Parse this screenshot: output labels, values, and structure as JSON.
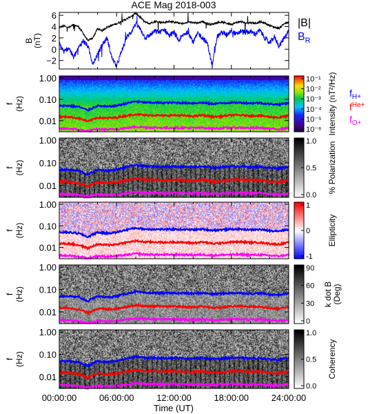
{
  "chart_data": [
    {
      "type": "line",
      "title": "ACE Mag 2018-003",
      "ylabel": "B",
      "yunit": "(nT)",
      "ylim": [
        -3.5,
        6.5
      ],
      "yticks": [
        -2,
        0,
        2,
        4,
        6
      ],
      "xlim": [
        0,
        24
      ],
      "series": [
        {
          "name": "|B|",
          "color": "#000000",
          "x": [
            0,
            0.5,
            1,
            1.5,
            2,
            2.5,
            3,
            3.5,
            4,
            4.5,
            5,
            5.5,
            6,
            6.5,
            7,
            7.5,
            8,
            8.5,
            9,
            9.5,
            10,
            10.5,
            11,
            11.5,
            12,
            12.5,
            13,
            13.5,
            14,
            14.5,
            15,
            15.5,
            16,
            16.5,
            17,
            17.5,
            18,
            18.5,
            19,
            19.5,
            20,
            20.5,
            21,
            21.5,
            22,
            22.5,
            23,
            23.5,
            24
          ],
          "values": [
            3.9,
            4.1,
            3.8,
            4.3,
            4.0,
            2.8,
            1.5,
            2.0,
            3.6,
            3.3,
            3.9,
            4.2,
            4.5,
            4.9,
            5.3,
            5.8,
            6.3,
            5.6,
            4.7,
            4.6,
            4.9,
            4.8,
            4.7,
            4.9,
            4.8,
            4.6,
            4.5,
            4.8,
            4.7,
            4.6,
            4.9,
            4.5,
            4.4,
            4.7,
            4.8,
            4.6,
            4.4,
            4.7,
            4.9,
            4.6,
            4.7,
            4.6,
            4.8,
            4.6,
            4.2,
            3.9,
            3.7,
            4.5,
            4.7
          ]
        },
        {
          "name": "B_R",
          "color": "#0000ff",
          "x": [
            0,
            0.5,
            1,
            1.5,
            2,
            2.5,
            3,
            3.5,
            4,
            4.5,
            5,
            5.5,
            6,
            6.5,
            7,
            7.5,
            8,
            8.5,
            9,
            9.5,
            10,
            10.5,
            11,
            11.5,
            12,
            12.5,
            13,
            13.5,
            14,
            14.5,
            15,
            15.5,
            16,
            16.5,
            17,
            17.5,
            18,
            18.5,
            19,
            19.5,
            20,
            20.5,
            21,
            21.5,
            22,
            22.5,
            23,
            23.5,
            24
          ],
          "values": [
            1.0,
            -0.5,
            0.3,
            -1.5,
            0.2,
            1.5,
            0.5,
            -2.5,
            -1.0,
            0.8,
            2.0,
            -1.5,
            -3.0,
            -0.5,
            2.0,
            3.0,
            4.5,
            3.5,
            2.0,
            2.5,
            3.2,
            3.0,
            3.5,
            2.4,
            3.0,
            1.5,
            2.6,
            3.1,
            1.2,
            2.8,
            2.0,
            1.0,
            -3.0,
            2.2,
            3.0,
            2.5,
            3.4,
            2.6,
            3.2,
            2.9,
            3.1,
            2.7,
            3.3,
            2.0,
            1.0,
            2.2,
            0.5,
            2.0,
            3.2
          ]
        }
      ],
      "legend": [
        {
          "label": "|B|",
          "color": "#000000"
        },
        {
          "label": "B",
          "sub": "R",
          "color": "#0000ff"
        }
      ]
    },
    {
      "type": "heatmap",
      "ylabel": "f",
      "yunit": "(Hz)",
      "yscale": "log",
      "ylim": [
        0.003,
        1.25
      ],
      "yticks": [
        0.01,
        0.1,
        1
      ],
      "ytick_labels": [
        "0.01",
        "0.10",
        "1.00"
      ],
      "colorbar": {
        "label": "Intensity (nT²/Hz)",
        "ticks": [
          "10⁻¹",
          "10⁻²",
          "10⁻³",
          "10⁻⁴",
          "10⁻⁵",
          "10⁻⁶"
        ],
        "range": [
          1e-06,
          0.1
        ]
      },
      "lines": [
        "f_H+",
        "f_He+",
        "f_O+"
      ]
    },
    {
      "type": "heatmap",
      "ylabel": "f",
      "yunit": "(Hz)",
      "yscale": "log",
      "ylim": [
        0.003,
        1.25
      ],
      "yticks": [
        0.01,
        0.1,
        1
      ],
      "ytick_labels": [
        "0.01",
        "0.10",
        "1.00"
      ],
      "colorbar": {
        "label": "% Polarization",
        "ticks": [
          "1.0",
          "0.5",
          "0.0"
        ],
        "range": [
          0,
          1
        ]
      },
      "lines": [
        "f_H+",
        "f_He+",
        "f_O+"
      ]
    },
    {
      "type": "heatmap",
      "ylabel": "f",
      "yunit": "(Hz)",
      "yscale": "log",
      "ylim": [
        0.003,
        1.25
      ],
      "yticks": [
        0.01,
        0.1,
        1
      ],
      "ytick_labels": [
        "0.01",
        "0.10",
        "1.00"
      ],
      "colorbar": {
        "label": "Ellipticity",
        "ticks": [
          "1",
          "0",
          "-1"
        ],
        "range": [
          -1,
          1
        ]
      },
      "lines": [
        "f_H+",
        "f_He+",
        "f_O+"
      ]
    },
    {
      "type": "heatmap",
      "ylabel": "f",
      "yunit": "(Hz)",
      "yscale": "log",
      "ylim": [
        0.003,
        1.25
      ],
      "yticks": [
        0.01,
        0.1,
        1
      ],
      "ytick_labels": [
        "0.01",
        "0.10",
        "1.00"
      ],
      "colorbar": {
        "label": "k dot B",
        "unit": "(Deg)",
        "ticks": [
          "90",
          "60",
          "30",
          "0"
        ],
        "range": [
          0,
          90
        ]
      },
      "lines": [
        "f_H+",
        "f_He+",
        "f_O+"
      ]
    },
    {
      "type": "heatmap",
      "ylabel": "f",
      "yunit": "(Hz)",
      "yscale": "log",
      "ylim": [
        0.003,
        1.25
      ],
      "yticks": [
        0.01,
        0.1,
        1
      ],
      "ytick_labels": [
        "0.01",
        "0.10",
        "1.00"
      ],
      "colorbar": {
        "label": "Coherency",
        "ticks": [
          "1.0",
          "0.5",
          "0.0"
        ],
        "range": [
          0,
          1
        ]
      },
      "lines": [
        "f_H+",
        "f_He+",
        "f_O+"
      ],
      "xlabel": "Time (UT)",
      "xticks": [
        "00:00:00",
        "06:00:00",
        "12:00:00",
        "18:00:00",
        "24:00:00"
      ]
    }
  ],
  "gyro_lines": {
    "x": [
      0,
      1,
      2,
      3,
      4,
      5,
      6,
      7,
      8,
      9,
      10,
      11,
      12,
      13,
      14,
      15,
      16,
      17,
      18,
      19,
      20,
      21,
      22,
      23,
      24
    ],
    "f_H": [
      0.05,
      0.05,
      0.045,
      0.03,
      0.05,
      0.045,
      0.05,
      0.065,
      0.08,
      0.07,
      0.07,
      0.068,
      0.07,
      0.068,
      0.066,
      0.07,
      0.062,
      0.066,
      0.07,
      0.07,
      0.066,
      0.068,
      0.06,
      0.058,
      0.068
    ],
    "f_He": [
      0.015,
      0.015,
      0.013,
      0.009,
      0.014,
      0.013,
      0.014,
      0.017,
      0.02,
      0.018,
      0.018,
      0.017,
      0.018,
      0.017,
      0.016,
      0.018,
      0.015,
      0.016,
      0.018,
      0.018,
      0.017,
      0.017,
      0.015,
      0.014,
      0.017
    ],
    "f_O": [
      0.0042,
      0.0042,
      0.0038,
      0.0032,
      0.004,
      0.0038,
      0.004,
      0.0045,
      0.0052,
      0.0048,
      0.0047,
      0.0046,
      0.0047,
      0.0046,
      0.0045,
      0.0047,
      0.0043,
      0.0045,
      0.0047,
      0.0047,
      0.0045,
      0.0046,
      0.0042,
      0.004,
      0.0046
    ],
    "legend": [
      {
        "label": "f",
        "sub": "H+",
        "color": "#0000ff"
      },
      {
        "label": "f",
        "sub": "He+",
        "color": "#ff0000"
      },
      {
        "label": "f",
        "sub": "O+",
        "color": "#ff00ff"
      }
    ]
  }
}
